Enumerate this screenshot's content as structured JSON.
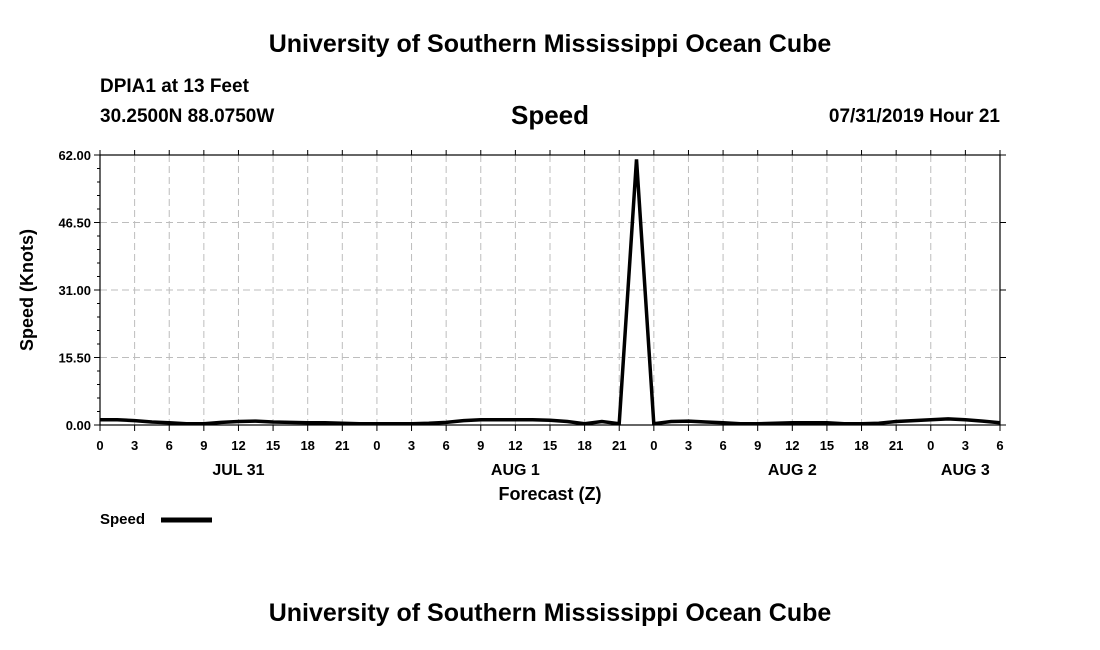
{
  "header": {
    "title": "University of Southern Mississippi Ocean Cube",
    "station": "DPIA1 at 13 Feet",
    "coordinates": "30.2500N 88.0750W",
    "chart_title": "Speed",
    "datetime": "07/31/2019 Hour 21"
  },
  "footer": {
    "title": "University of Southern Mississippi Ocean Cube"
  },
  "chart_data": {
    "type": "line",
    "title": "Speed",
    "xlabel": "Forecast (Z)",
    "ylabel": "Speed (Knots)",
    "ylim": [
      0,
      62
    ],
    "y_ticks": [
      "0.00",
      "15.50",
      "31.00",
      "46.50",
      "62.00"
    ],
    "x_range_hours": [
      0,
      78
    ],
    "x_tick_labels": [
      "0",
      "3",
      "6",
      "9",
      "12",
      "15",
      "18",
      "21",
      "0",
      "3",
      "6",
      "9",
      "12",
      "15",
      "18",
      "21",
      "0",
      "3",
      "6",
      "9",
      "12",
      "15",
      "18",
      "21",
      "0",
      "3",
      "6"
    ],
    "date_labels": [
      {
        "label": "JUL 31",
        "hour": 12
      },
      {
        "label": "AUG 1",
        "hour": 36
      },
      {
        "label": "AUG 2",
        "hour": 60
      },
      {
        "label": "AUG 3",
        "hour": 75
      }
    ],
    "grid": true,
    "legend": "bottom-left",
    "series": [
      {
        "name": "Speed",
        "color": "#000000",
        "x": [
          0,
          1.5,
          3,
          4.5,
          6,
          7.5,
          9,
          10.5,
          12,
          13.5,
          15,
          16.5,
          18,
          19.5,
          21,
          22.5,
          24,
          25.5,
          27,
          28.5,
          30,
          31.5,
          33,
          34.5,
          36,
          37.5,
          39,
          40.5,
          42,
          43.5,
          45,
          46.5,
          48,
          49.5,
          51,
          52.5,
          54,
          55.5,
          57,
          58.5,
          60,
          61.5,
          63,
          64.5,
          66,
          67.5,
          69,
          70.5,
          72,
          73.5,
          75,
          76.5,
          78
        ],
        "values": [
          1.2,
          1.2,
          1.0,
          0.7,
          0.5,
          0.3,
          0.3,
          0.6,
          0.8,
          0.9,
          0.7,
          0.6,
          0.5,
          0.5,
          0.4,
          0.3,
          0.3,
          0.3,
          0.3,
          0.4,
          0.6,
          1.0,
          1.2,
          1.2,
          1.2,
          1.2,
          1.1,
          0.8,
          0.3,
          0.8,
          0.3,
          61.0,
          0.3,
          0.8,
          0.9,
          0.7,
          0.5,
          0.3,
          0.3,
          0.4,
          0.5,
          0.5,
          0.5,
          0.3,
          0.3,
          0.4,
          0.8,
          1.0,
          1.2,
          1.4,
          1.2,
          0.9,
          0.5
        ]
      }
    ]
  }
}
